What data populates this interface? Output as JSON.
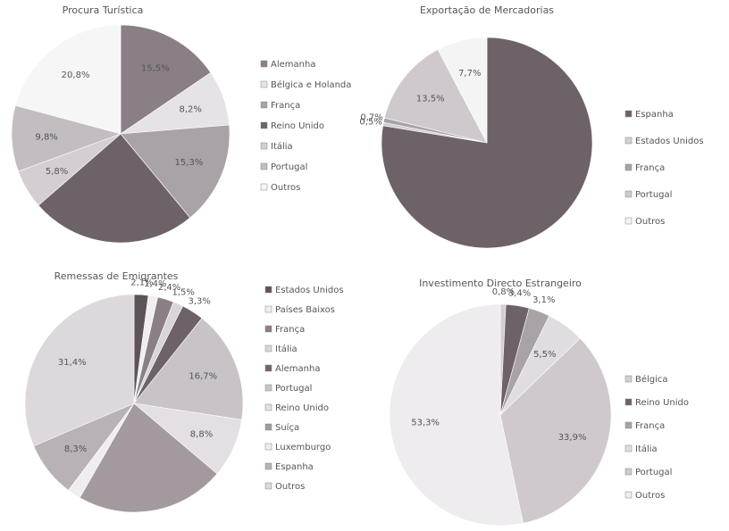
{
  "chart_data": [
    {
      "type": "pie",
      "title": "Procura Turística",
      "categories": [
        "Alemanha",
        "Bélgica e Holanda",
        "França",
        "Reino Unido",
        "Itália",
        "Portugal",
        "Outros"
      ],
      "values": [
        15.5,
        8.2,
        15.3,
        24.6,
        5.8,
        9.8,
        20.8
      ],
      "value_labels": [
        "15,5%",
        "8,2%",
        "15,3%",
        null,
        "5,8%",
        "9,8%",
        "20,8%"
      ],
      "colors": [
        "#8a7f86",
        "#e6e3e6",
        "#a9a2a7",
        "#6e6269",
        "#d4ced2",
        "#c3bcc1",
        "#f7f6f7"
      ]
    },
    {
      "type": "pie",
      "title": "Exportação de Mercadorias",
      "categories": [
        "Espanha",
        "Estados Unidos",
        "França",
        "Portugal",
        "Outros"
      ],
      "values": [
        77.6,
        0.5,
        0.7,
        13.5,
        7.7
      ],
      "value_labels": [
        null,
        "0,5%",
        "0,7%",
        "13,5%",
        "7,7%"
      ],
      "colors": [
        "#6e6269",
        "#d4ced2",
        "#a9a2a7",
        "#cfc9cd",
        "#f5f4f5"
      ]
    },
    {
      "type": "pie",
      "title": "Remessas de Emigrantes",
      "categories": [
        "Estados Unidos",
        "Países Baixos",
        "França",
        "Itália",
        "Alemanha",
        "Portugal",
        "Reino Unido",
        "Suíça",
        "Luxemburgo",
        "Espanha",
        "Outros"
      ],
      "values": [
        2.1,
        1.4,
        2.4,
        1.5,
        3.3,
        16.7,
        8.8,
        22.1,
        2.0,
        8.3,
        31.4
      ],
      "value_labels": [
        "2,1%",
        "1,4%",
        "2,4%",
        "1,5%",
        "3,3%",
        "16,7%",
        "8,8%",
        null,
        null,
        "8,3%",
        "31,4%"
      ],
      "colors": [
        "#5e5359",
        "#f0eef0",
        "#8a7f86",
        "#d9d4d7",
        "#6e6269",
        "#c9c3c7",
        "#e3dfe2",
        "#a39aa0",
        "#efedef",
        "#b8b1b6",
        "#dcd8db"
      ]
    },
    {
      "type": "pie",
      "title": "Investimento Directo Estrangeiro",
      "categories": [
        "Bélgica",
        "Reino Unido",
        "França",
        "Itália",
        "Portugal",
        "Outros"
      ],
      "values": [
        0.8,
        3.4,
        3.1,
        5.5,
        33.9,
        53.3
      ],
      "value_labels": [
        "0,8%",
        "3,4%",
        "3,1%",
        "5,5%",
        "33,9%",
        "53,3%"
      ],
      "colors": [
        "#d4ced2",
        "#6e6269",
        "#a9a2a7",
        "#e0dce0",
        "#cfc9cd",
        "#eeecee"
      ]
    }
  ]
}
